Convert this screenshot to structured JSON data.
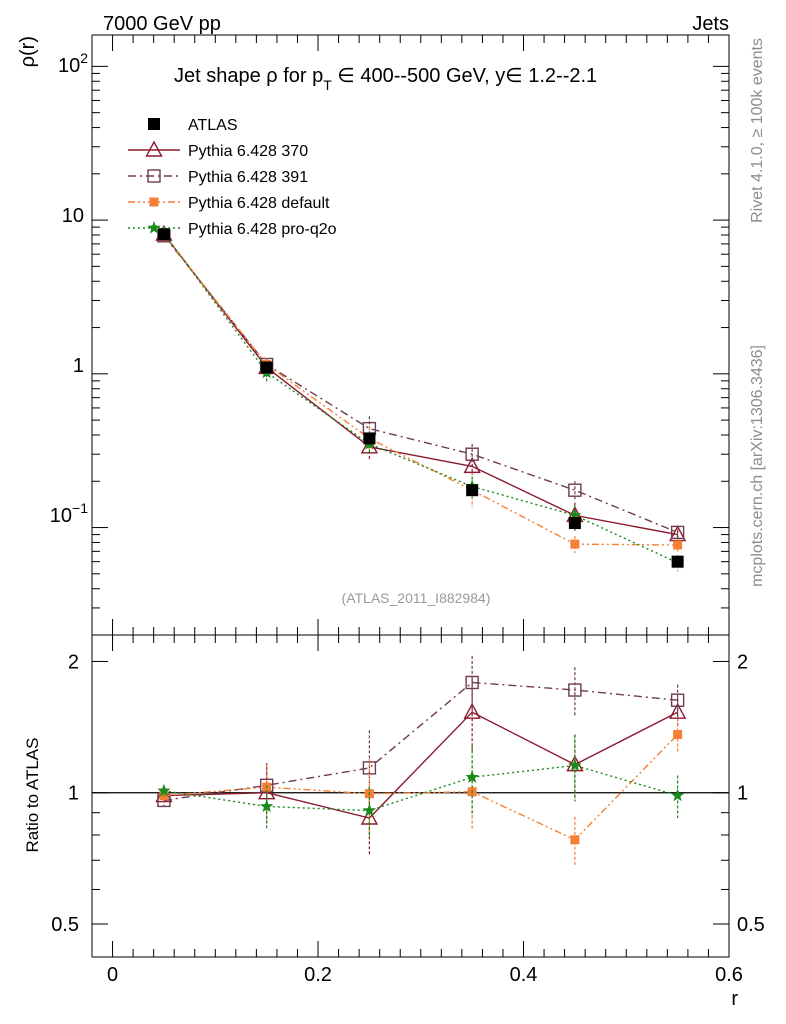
{
  "header": {
    "left": "7000 GeV pp",
    "right": "Jets"
  },
  "side_labels": {
    "rivet": "Rivet 4.1.0, ≥ 100k events",
    "mcplots": "mcplots.cern.ch [arXiv:1306.3436]"
  },
  "reference": "(ATLAS_2011_I882984)",
  "colors": {
    "atlas": "#000000",
    "p370": "#8b1a2e",
    "p391": "#6e3b52",
    "default": "#f47f35",
    "proq2o": "#1a8a1a"
  },
  "chart_data": [
    {
      "type": "line",
      "title": "Jet shape ρ for p_T ∈ 400--500 GeV, y∈ 1.2--2.1",
      "title_parts": {
        "pre": "Jet shape ρ for p",
        "sub": "T",
        "post": " ∈ 400--500 GeV, y∈ 1.2--2.1"
      },
      "ylabel": "ρ(r)",
      "yscale": "log",
      "ylim": [
        0.02,
        160
      ],
      "xlim": [
        -0.02,
        0.6
      ],
      "ytick_labels": [
        "10−1",
        "1",
        "10",
        "102"
      ],
      "x": [
        0.05,
        0.15,
        0.25,
        0.35,
        0.45,
        0.55
      ],
      "series": [
        {
          "name": "ATLAS",
          "marker": "square-filled",
          "values": [
            8.1,
            1.1,
            0.38,
            0.175,
            0.107,
            0.06
          ],
          "err": [
            0.15,
            0.05,
            0.02,
            0.008,
            0.006,
            0.004
          ]
        },
        {
          "name": "Pythia 6.428 370",
          "marker": "triangle-open",
          "dash": "solid",
          "values": [
            8.1,
            1.1,
            0.335,
            0.25,
            0.12,
            0.09
          ],
          "err": [
            0.2,
            0.15,
            0.06,
            0.03,
            0.025,
            0.007
          ]
        },
        {
          "name": "Pythia 6.428 391",
          "marker": "square-open",
          "dash": "dashdot",
          "values": [
            7.9,
            1.15,
            0.44,
            0.3,
            0.175,
            0.093
          ],
          "err": [
            0.2,
            0.12,
            0.09,
            0.05,
            0.025,
            0.01
          ]
        },
        {
          "name": "Pythia 6.428 default",
          "marker": "square-small",
          "dash": "dashdotdot",
          "values": [
            8.0,
            1.15,
            0.38,
            0.175,
            0.078,
            0.077
          ],
          "err": [
            0.2,
            0.12,
            0.07,
            0.04,
            0.01,
            0.007
          ]
        },
        {
          "name": "Pythia 6.428 pro-q2o",
          "marker": "star",
          "dash": "dotted",
          "values": [
            8.2,
            1.02,
            0.35,
            0.185,
            0.12,
            0.059
          ],
          "err": [
            0.2,
            0.15,
            0.05,
            0.03,
            0.02,
            0.007
          ]
        }
      ]
    },
    {
      "type": "line",
      "title": "",
      "xlabel": "r",
      "ylabel": "Ratio to ATLAS",
      "yscale": "log",
      "ylim": [
        0.42,
        2.3
      ],
      "xlim": [
        -0.02,
        0.6
      ],
      "xticks": [
        0,
        0.2,
        0.4,
        0.6
      ],
      "xtick_labels": [
        "0",
        "0.2",
        "0.4",
        "0.6"
      ],
      "yticks": [
        0.5,
        1,
        2
      ],
      "ytick_labels": [
        "0.5",
        "1",
        "2"
      ],
      "x": [
        0.05,
        0.15,
        0.25,
        0.35,
        0.45,
        0.55
      ],
      "series": [
        {
          "name": "Pythia 6.428 370",
          "values": [
            0.985,
            1.0,
            0.875,
            1.53,
            1.16,
            1.53
          ],
          "err": [
            0.03,
            0.15,
            0.16,
            0.3,
            0.2,
            0.12
          ]
        },
        {
          "name": "Pythia 6.428 391",
          "values": [
            0.96,
            1.04,
            1.14,
            1.79,
            1.72,
            1.63
          ],
          "err": [
            0.03,
            0.13,
            0.25,
            0.27,
            0.22,
            0.14
          ]
        },
        {
          "name": "Pythia 6.428 default",
          "values": [
            0.985,
            1.03,
            0.995,
            1.005,
            0.78,
            1.36
          ],
          "err": [
            0.03,
            0.13,
            0.2,
            0.18,
            0.1,
            0.12
          ]
        },
        {
          "name": "Pythia 6.428 pro-q2o",
          "values": [
            1.01,
            0.93,
            0.91,
            1.085,
            1.155,
            0.985
          ],
          "err": [
            0.03,
            0.11,
            0.12,
            0.2,
            0.2,
            0.11
          ]
        }
      ]
    }
  ]
}
